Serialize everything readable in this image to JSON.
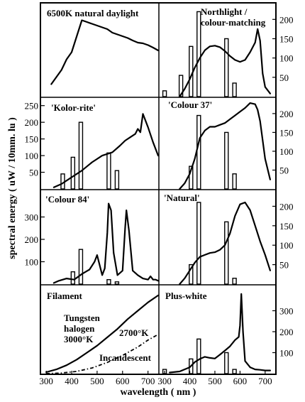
{
  "figure": {
    "ylabel": "spectral energy ( uW / 10mm. lu )",
    "xlabel": "wavelength ( nm )",
    "x_ticks": [
      "300",
      "400",
      "500",
      "600",
      "700"
    ]
  },
  "chart_data": [
    {
      "type": "line",
      "title": "6500K natural daylight",
      "panel": "row1-left",
      "ylim": [
        0,
        250
      ],
      "yticks": [],
      "curves": [
        {
          "x": [
            320,
            340,
            360,
            380,
            400,
            420,
            440,
            460,
            480,
            500,
            520,
            540,
            560,
            580,
            600,
            620,
            640,
            660,
            680,
            700,
            720,
            740
          ],
          "y": [
            35,
            55,
            75,
            105,
            125,
            170,
            215,
            210,
            205,
            200,
            195,
            190,
            180,
            175,
            170,
            165,
            158,
            152,
            150,
            145,
            138,
            130
          ]
        }
      ],
      "bars": []
    },
    {
      "type": "line",
      "title": "Northlight / colour-matching",
      "panel": "row1-right",
      "ylim": [
        0,
        230
      ],
      "yticks": [
        "50",
        "100",
        "150",
        "200"
      ],
      "curves": [
        {
          "x": [
            360,
            380,
            400,
            420,
            440,
            460,
            480,
            500,
            520,
            540,
            560,
            580,
            600,
            620,
            640,
            660,
            670,
            680,
            690,
            700,
            720
          ],
          "y": [
            0,
            20,
            45,
            75,
            100,
            120,
            130,
            132,
            128,
            118,
            105,
            95,
            90,
            95,
            115,
            140,
            175,
            145,
            60,
            25,
            8
          ]
        }
      ],
      "bars": [
        {
          "x": 300,
          "value": 15
        },
        {
          "x": 365,
          "value": 55
        },
        {
          "x": 405,
          "value": 130
        },
        {
          "x": 436,
          "value": 220
        },
        {
          "x": 546,
          "value": 150
        },
        {
          "x": 578,
          "value": 35
        }
      ]
    },
    {
      "type": "line",
      "title": "'Kolor-rite'",
      "panel": "row2-left",
      "ylim": [
        0,
        260
      ],
      "yticks": [
        "50",
        "100",
        "150",
        "200",
        "250"
      ],
      "curves": [
        {
          "x": [
            330,
            360,
            400,
            440,
            480,
            520,
            560,
            590,
            610,
            630,
            650,
            660,
            670,
            680,
            700,
            720,
            740
          ],
          "y": [
            5,
            15,
            35,
            55,
            80,
            100,
            110,
            130,
            145,
            155,
            165,
            180,
            170,
            225,
            185,
            140,
            100
          ]
        }
      ],
      "bars": [
        {
          "x": 365,
          "value": 45
        },
        {
          "x": 405,
          "value": 95
        },
        {
          "x": 436,
          "value": 200
        },
        {
          "x": 546,
          "value": 108
        },
        {
          "x": 578,
          "value": 55
        }
      ]
    },
    {
      "type": "line",
      "title": "'Colour 37'",
      "panel": "row2-right",
      "ylim": [
        0,
        230
      ],
      "yticks": [
        "50",
        "100",
        "150",
        "200"
      ],
      "curves": [
        {
          "x": [
            360,
            380,
            400,
            420,
            440,
            460,
            480,
            500,
            520,
            540,
            560,
            580,
            600,
            620,
            640,
            660,
            670,
            680,
            700,
            720
          ],
          "y": [
            0,
            15,
            40,
            80,
            135,
            155,
            165,
            165,
            170,
            175,
            185,
            195,
            205,
            215,
            228,
            225,
            210,
            180,
            80,
            25
          ]
        }
      ],
      "bars": [
        {
          "x": 405,
          "value": 60
        },
        {
          "x": 436,
          "value": 195
        },
        {
          "x": 546,
          "value": 150
        },
        {
          "x": 578,
          "value": 40
        }
      ]
    },
    {
      "type": "line",
      "title": "'Colour 84'",
      "panel": "row3-left",
      "ylim": [
        0,
        400
      ],
      "yticks": [
        "100",
        "200",
        "300"
      ],
      "curves": [
        {
          "x": [
            330,
            350,
            380,
            410,
            440,
            470,
            490,
            500,
            520,
            530,
            540,
            545,
            555,
            565,
            580,
            600,
            610,
            615,
            625,
            640,
            660,
            680,
            700,
            710,
            720,
            730,
            740
          ],
          "y": [
            5,
            15,
            25,
            20,
            45,
            65,
            100,
            130,
            40,
            70,
            230,
            360,
            330,
            140,
            40,
            60,
            250,
            330,
            240,
            60,
            40,
            25,
            20,
            35,
            20,
            20,
            15
          ]
        }
      ],
      "bars": [
        {
          "x": 405,
          "value": 55
        },
        {
          "x": 436,
          "value": 155
        },
        {
          "x": 546,
          "value": 20
        },
        {
          "x": 578,
          "value": 10
        }
      ]
    },
    {
      "type": "line",
      "title": "'Natural'",
      "panel": "row3-right",
      "ylim": [
        0,
        230
      ],
      "yticks": [
        "50",
        "100",
        "150",
        "200"
      ],
      "curves": [
        {
          "x": [
            360,
            380,
            400,
            420,
            440,
            460,
            480,
            500,
            520,
            540,
            560,
            580,
            600,
            620,
            640,
            660,
            680,
            700,
            720
          ],
          "y": [
            0,
            15,
            35,
            55,
            70,
            75,
            80,
            82,
            88,
            100,
            130,
            175,
            205,
            210,
            190,
            150,
            110,
            75,
            35
          ]
        }
      ],
      "bars": [
        {
          "x": 405,
          "value": 50
        },
        {
          "x": 436,
          "value": 210
        },
        {
          "x": 546,
          "value": 160
        },
        {
          "x": 578,
          "value": 15
        }
      ]
    },
    {
      "type": "line",
      "title": "Filament",
      "panel": "row4-left",
      "ylim": [
        0,
        300
      ],
      "yticks": [],
      "annotations": [
        "Tungsten",
        "halogen",
        "3000°K",
        "2700°K",
        "Incandescent"
      ],
      "curves": [
        {
          "name": "Tungsten halogen 3000°K",
          "dashed": false,
          "x": [
            300,
            340,
            380,
            420,
            460,
            500,
            540,
            580,
            620,
            660,
            700,
            740
          ],
          "y": [
            5,
            15,
            30,
            50,
            75,
            100,
            130,
            160,
            195,
            225,
            255,
            280
          ]
        },
        {
          "name": "2700°K Incandescent",
          "dashed": true,
          "x": [
            300,
            360,
            420,
            480,
            540,
            600,
            660,
            700,
            740
          ],
          "y": [
            0,
            2,
            8,
            20,
            40,
            65,
            95,
            120,
            140
          ]
        }
      ],
      "bars": []
    },
    {
      "type": "line",
      "title": "Plus-white",
      "panel": "row4-right",
      "ylim": [
        0,
        400
      ],
      "yticks": [
        "100",
        "200",
        "300"
      ],
      "curves": [
        {
          "x": [
            320,
            360,
            400,
            420,
            440,
            460,
            480,
            500,
            520,
            540,
            560,
            580,
            595,
            600,
            605,
            612,
            620,
            640,
            660,
            680,
            700,
            720
          ],
          "y": [
            5,
            10,
            30,
            55,
            70,
            80,
            75,
            72,
            90,
            110,
            130,
            160,
            175,
            230,
            380,
            200,
            60,
            30,
            20,
            18,
            15,
            15
          ]
        }
      ],
      "bars": [
        {
          "x": 300,
          "value": 20
        },
        {
          "x": 405,
          "value": 70
        },
        {
          "x": 436,
          "value": 165
        },
        {
          "x": 546,
          "value": 100
        },
        {
          "x": 578,
          "value": 20
        }
      ]
    }
  ]
}
